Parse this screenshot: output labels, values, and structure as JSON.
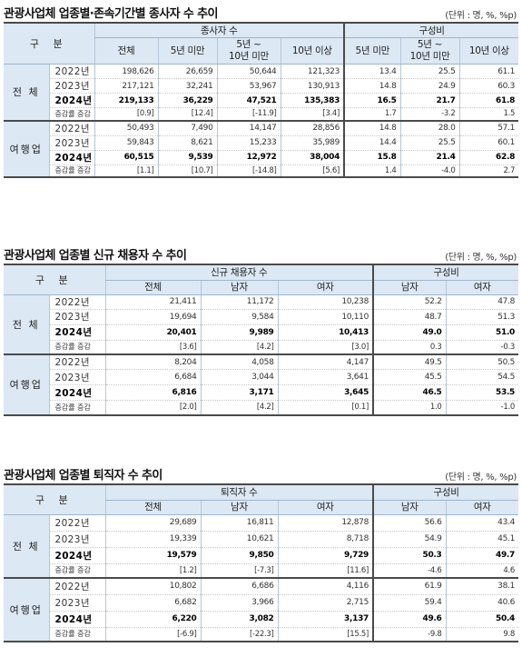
{
  "sections": [
    {
      "title": "관광사업체 업종별·존속기간별 종사자 수 추이",
      "unit": "(단위 : 명, %, %p)",
      "header": {
        "category": "구 분",
        "group1": "종사자 수",
        "group2": "구성비",
        "cols1": [
          "전체",
          "5년 미만",
          "5년 ~\n10년 미만",
          "10년 이상"
        ],
        "cols2": [
          "5년 미만",
          "5년 ~\n10년 미만",
          "10년 이상"
        ]
      },
      "groups": [
        {
          "label": "전 체",
          "rows": [
            {
              "year": "2022년",
              "v": [
                "198,626",
                "26,659",
                "50,644",
                "121,323",
                "13.4",
                "25.5",
                "61.1"
              ]
            },
            {
              "year": "2023년",
              "v": [
                "217,121",
                "32,241",
                "53,967",
                "130,913",
                "14.8",
                "24.9",
                "60.3"
              ]
            },
            {
              "year": "2024년",
              "v": [
                "219,133",
                "36,229",
                "47,521",
                "135,383",
                "16.5",
                "21.7",
                "61.8"
              ]
            },
            {
              "year": "증감률 증감",
              "v": [
                "[0.9]",
                "[12.4]",
                "[-11.9]",
                "[3.4]",
                "1.7",
                "-3.2",
                "1.5"
              ]
            }
          ]
        },
        {
          "label": "여행업",
          "rows": [
            {
              "year": "2022년",
              "v": [
                "50,493",
                "7,490",
                "14,147",
                "28,856",
                "14.8",
                "28.0",
                "57.1"
              ]
            },
            {
              "year": "2023년",
              "v": [
                "59,843",
                "8,621",
                "15,233",
                "35,989",
                "14.4",
                "25.5",
                "60.1"
              ]
            },
            {
              "year": "2024년",
              "v": [
                "60,515",
                "9,539",
                "12,972",
                "38,004",
                "15.8",
                "21.4",
                "62.8"
              ]
            },
            {
              "year": "증감률 증감",
              "v": [
                "[1.1]",
                "[10.7]",
                "[-14.8]",
                "[5.6]",
                "1.4",
                "-4.0",
                "2.7"
              ]
            }
          ]
        }
      ]
    },
    {
      "title": "관광사업체 업종별 신규 채용자 수 추이",
      "unit": "(단위 : 명, %, %p)",
      "header": {
        "category": "구 분",
        "group1": "신규 채용자 수",
        "group2": "구성비",
        "cols1": [
          "전체",
          "남자",
          "여자"
        ],
        "cols2": [
          "남자",
          "여자"
        ]
      },
      "groups": [
        {
          "label": "전 체",
          "rows": [
            {
              "year": "2022년",
              "v": [
                "21,411",
                "11,172",
                "10,238",
                "52.2",
                "47.8"
              ]
            },
            {
              "year": "2023년",
              "v": [
                "19,694",
                "9,584",
                "10,110",
                "48.7",
                "51.3"
              ]
            },
            {
              "year": "2024년",
              "v": [
                "20,401",
                "9,989",
                "10,413",
                "49.0",
                "51.0"
              ]
            },
            {
              "year": "증감률 증감",
              "v": [
                "[3.6]",
                "[4.2]",
                "[3.0]",
                "0.3",
                "-0.3"
              ]
            }
          ]
        },
        {
          "label": "여행업",
          "rows": [
            {
              "year": "2022년",
              "v": [
                "8,204",
                "4,058",
                "4,147",
                "49.5",
                "50.5"
              ]
            },
            {
              "year": "2023년",
              "v": [
                "6,684",
                "3,044",
                "3,641",
                "45.5",
                "54.5"
              ]
            },
            {
              "year": "2024년",
              "v": [
                "6,816",
                "3,171",
                "3,645",
                "46.5",
                "53.5"
              ]
            },
            {
              "year": "증감률 증감",
              "v": [
                "[2.0]",
                "[4.2]",
                "[0.1]",
                "1.0",
                "-1.0"
              ]
            }
          ]
        }
      ]
    },
    {
      "title": "관광사업체 업종별 퇴직자 수 추이",
      "unit": "(단위 : 명, %, %p)",
      "header": {
        "category": "구 분",
        "group1": "퇴직자 수",
        "group2": "구성비",
        "cols1": [
          "전체",
          "남자",
          "여자"
        ],
        "cols2": [
          "남자",
          "여자"
        ]
      },
      "groups": [
        {
          "label": "전 체",
          "rows": [
            {
              "year": "2022년",
              "v": [
                "29,689",
                "16,811",
                "12,878",
                "56.6",
                "43.4"
              ]
            },
            {
              "year": "2023년",
              "v": [
                "19,339",
                "10,621",
                "8,718",
                "54.9",
                "45.1"
              ]
            },
            {
              "year": "2024년",
              "v": [
                "19,579",
                "9,850",
                "9,729",
                "50.3",
                "49.7"
              ]
            },
            {
              "year": "증감률 증감",
              "v": [
                "[1.2]",
                "[-7.3]",
                "[11.6]",
                "-4.6",
                "4.6"
              ]
            }
          ]
        },
        {
          "label": "여행업",
          "rows": [
            {
              "year": "2022년",
              "v": [
                "10,802",
                "6,686",
                "4,116",
                "61.9",
                "38.1"
              ]
            },
            {
              "year": "2023년",
              "v": [
                "6,682",
                "3,966",
                "2,715",
                "59.4",
                "40.6"
              ]
            },
            {
              "year": "2024년",
              "v": [
                "6,220",
                "3,082",
                "3,137",
                "49.6",
                "50.4"
              ]
            },
            {
              "year": "증감률 증감",
              "v": [
                "[-6.9]",
                "[-22.3]",
                "[15.5]",
                "-9.8",
                "9.8"
              ]
            }
          ]
        }
      ]
    }
  ]
}
